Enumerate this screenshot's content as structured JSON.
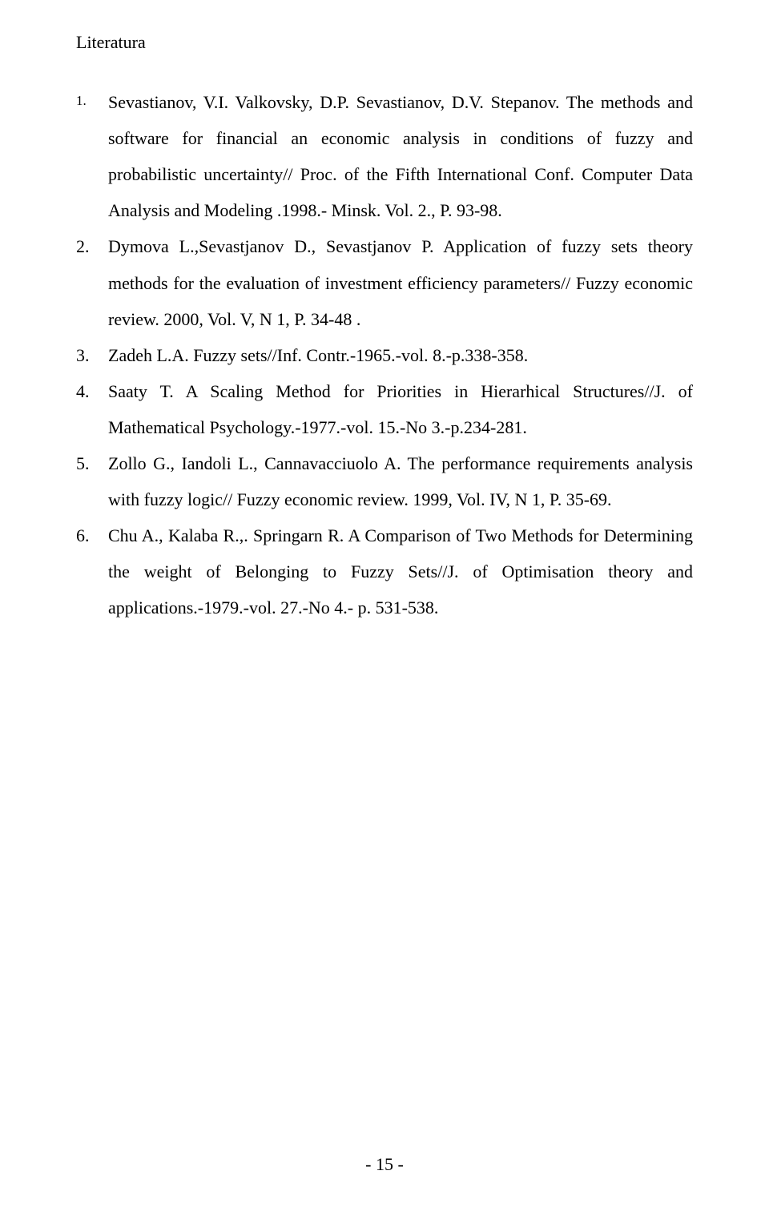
{
  "heading": "Literatura",
  "references": [
    {
      "marker": "1.",
      "text": "Sevastianov, V.I. Valkovsky, D.P. Sevastianov, D.V. Stepanov. The methods and software for financial an economic analysis in conditions of fuzzy and probabilistic  uncertainty// Proc. of the Fifth International Conf. Computer Data  Analysis and Modeling .1998.- Minsk. Vol. 2., P. 93-98."
    },
    {
      "marker": "2.",
      "text": "Dymova L.,Sevastjanov D., Sevastjanov P. Application of fuzzy sets theory methods for the evaluation of investment efficiency parameters// Fuzzy economic review. 2000, Vol. V, N 1, P. 34-48 ."
    },
    {
      "marker": "3.",
      "text": "Zadeh L.A. Fuzzy sets//Inf. Contr.-1965.-vol. 8.-p.338-358."
    },
    {
      "marker": "4.",
      "text": "Saaty T. A Scaling Method for Priorities in Hierarhical Structures//J. of Mathematical Psychology.-1977.-vol. 15.-No 3.-p.234-281."
    },
    {
      "marker": "5.",
      "text": "Zollo G., Iandoli L., Cannavacciuolo A. The performance requirements analysis with fuzzy logic// Fuzzy economic review. 1999, Vol. IV, N 1, P. 35-69."
    },
    {
      "marker": "6.",
      "text": "Chu A., Kalaba R.,. Springarn R. A Comparison of Two Methods for Determining the weight of Belonging to Fuzzy Sets//J. of Optimisation theory and applications.-1979.-vol. 27.-No 4.- p. 531-538."
    }
  ],
  "pageNumber": "- 15 -"
}
